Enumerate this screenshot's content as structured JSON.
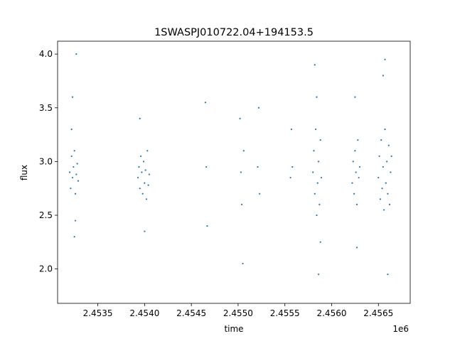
{
  "chart_data": {
    "type": "scatter",
    "title": "1SWASPJ010722.04+194153.5",
    "xlabel": "time",
    "ylabel": "flux",
    "x_offset_label": "1e6",
    "xlim": [
      2.45307,
      2.45684
    ],
    "ylim": [
      1.68,
      4.12
    ],
    "xticks": [
      2.4535,
      2.454,
      2.4545,
      2.455,
      2.4555,
      2.456,
      2.4565
    ],
    "xtick_labels": [
      "2.4535",
      "2.4540",
      "2.4545",
      "2.4550",
      "2.4555",
      "2.4560",
      "2.4565"
    ],
    "yticks": [
      2.0,
      2.5,
      3.0,
      3.5,
      4.0
    ],
    "ytick_labels": [
      "2.0",
      "2.5",
      "3.0",
      "3.5",
      "4.0"
    ],
    "grid": false,
    "marker_color": "#1f77b4",
    "series": [
      {
        "x": [
          2.4532,
          2.45321,
          2.45322,
          2.45323,
          2.45324,
          2.45325,
          2.45326,
          2.45327,
          2.45328,
          2.45329,
          2.45323,
          2.45325,
          2.45327,
          2.45322,
          2.45326,
          2.45393,
          2.45394,
          2.45395,
          2.45396,
          2.45397,
          2.45398,
          2.45399,
          2.454,
          2.45401,
          2.45402,
          2.45403,
          2.45404,
          2.45405,
          2.45395,
          2.454,
          2.45465,
          2.45466,
          2.45467,
          2.45502,
          2.45503,
          2.45504,
          2.45505,
          2.45506,
          2.45521,
          2.45522,
          2.45523,
          2.45556,
          2.45557,
          2.45558,
          2.4558,
          2.45581,
          2.45582,
          2.45583,
          2.45584,
          2.45585,
          2.45586,
          2.45587,
          2.45588,
          2.45589,
          2.45582,
          2.45586,
          2.45584,
          2.45588,
          2.45622,
          2.45623,
          2.45624,
          2.45625,
          2.45626,
          2.45627,
          2.45628,
          2.45629,
          2.4563,
          2.45625,
          2.45627,
          2.4565,
          2.45651,
          2.45652,
          2.45653,
          2.45654,
          2.45655,
          2.45656,
          2.45657,
          2.45658,
          2.45659,
          2.4566,
          2.45661,
          2.45662,
          2.45663,
          2.45664,
          2.45655,
          2.4566,
          2.45657
        ],
        "y": [
          2.9,
          2.75,
          3.05,
          2.85,
          2.95,
          3.1,
          2.7,
          2.88,
          2.98,
          2.82,
          3.6,
          2.3,
          4.0,
          3.3,
          2.45,
          2.85,
          2.95,
          2.75,
          3.05,
          2.9,
          2.7,
          3.0,
          2.8,
          2.92,
          2.65,
          3.1,
          2.78,
          2.88,
          3.4,
          2.35,
          3.55,
          2.95,
          2.4,
          3.4,
          2.9,
          2.6,
          2.05,
          3.1,
          2.95,
          3.5,
          2.7,
          2.85,
          3.3,
          2.95,
          2.9,
          3.1,
          2.7,
          3.3,
          2.5,
          2.8,
          3.0,
          2.6,
          3.2,
          2.85,
          3.9,
          1.95,
          3.6,
          2.25,
          2.8,
          3.0,
          2.7,
          3.1,
          2.9,
          2.6,
          3.2,
          2.85,
          2.95,
          3.6,
          2.2,
          2.85,
          3.05,
          2.65,
          3.2,
          2.75,
          2.95,
          2.55,
          3.3,
          2.8,
          3.0,
          2.7,
          3.15,
          2.6,
          2.9,
          3.05,
          3.8,
          1.95,
          3.95
        ]
      }
    ]
  }
}
